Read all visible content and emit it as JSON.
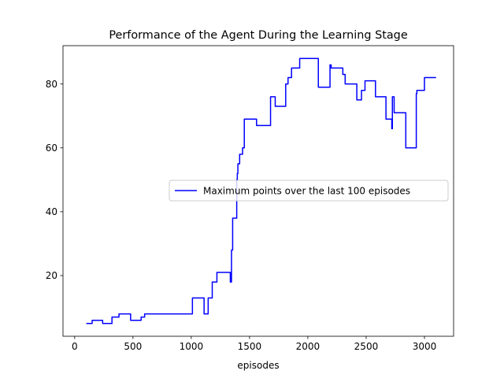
{
  "chart_data": {
    "type": "line",
    "title": "Performance of the Agent During the Learning Stage",
    "xlabel": "episodes",
    "ylabel": "",
    "xlim": [
      -100,
      3250
    ],
    "ylim": [
      1,
      92
    ],
    "xticks": [
      0,
      500,
      1000,
      1500,
      2000,
      2500,
      3000
    ],
    "yticks": [
      20,
      40,
      60,
      80
    ],
    "grid": false,
    "legend_placement": "center-right",
    "series": [
      {
        "name": "Maximum points over the last 100 episodes",
        "color": "#0000ff",
        "x": [
          100,
          150,
          150,
          240,
          240,
          320,
          320,
          380,
          380,
          480,
          480,
          570,
          570,
          600,
          600,
          1010,
          1010,
          1110,
          1110,
          1145,
          1145,
          1180,
          1180,
          1220,
          1220,
          1335,
          1335,
          1345,
          1345,
          1355,
          1355,
          1390,
          1390,
          1395,
          1395,
          1400,
          1400,
          1405,
          1405,
          1415,
          1415,
          1440,
          1440,
          1455,
          1455,
          1560,
          1560,
          1680,
          1680,
          1720,
          1720,
          1810,
          1810,
          1830,
          1830,
          1860,
          1860,
          1930,
          1930,
          2090,
          2090,
          2180,
          2180,
          2190,
          2190,
          2200,
          2200,
          2300,
          2300,
          2320,
          2320,
          2420,
          2420,
          2460,
          2460,
          2490,
          2490,
          2580,
          2580,
          2670,
          2670,
          2720,
          2720,
          2725,
          2725,
          2730,
          2730,
          2740,
          2740,
          2840,
          2840,
          2930,
          2930,
          2935,
          2935,
          3000,
          3000,
          3005,
          3005,
          3100
        ],
        "y": [
          5,
          5,
          6,
          6,
          5,
          5,
          7,
          7,
          8,
          8,
          6,
          6,
          7,
          7,
          8,
          8,
          13,
          13,
          8,
          8,
          13,
          13,
          18,
          18,
          21,
          21,
          18,
          18,
          28,
          28,
          38,
          38,
          50,
          50,
          52,
          52,
          55,
          55,
          55,
          55,
          58,
          58,
          60,
          60,
          69,
          69,
          67,
          67,
          76,
          76,
          73,
          73,
          80,
          80,
          82,
          82,
          85,
          85,
          88,
          88,
          79,
          79,
          79,
          79,
          86,
          86,
          85,
          85,
          83,
          83,
          80,
          80,
          75,
          75,
          78,
          78,
          81,
          81,
          76,
          76,
          69,
          69,
          66,
          66,
          76,
          76,
          76,
          76,
          71,
          71,
          60,
          60,
          77,
          77,
          78,
          78,
          82,
          82,
          82,
          82
        ]
      }
    ]
  }
}
